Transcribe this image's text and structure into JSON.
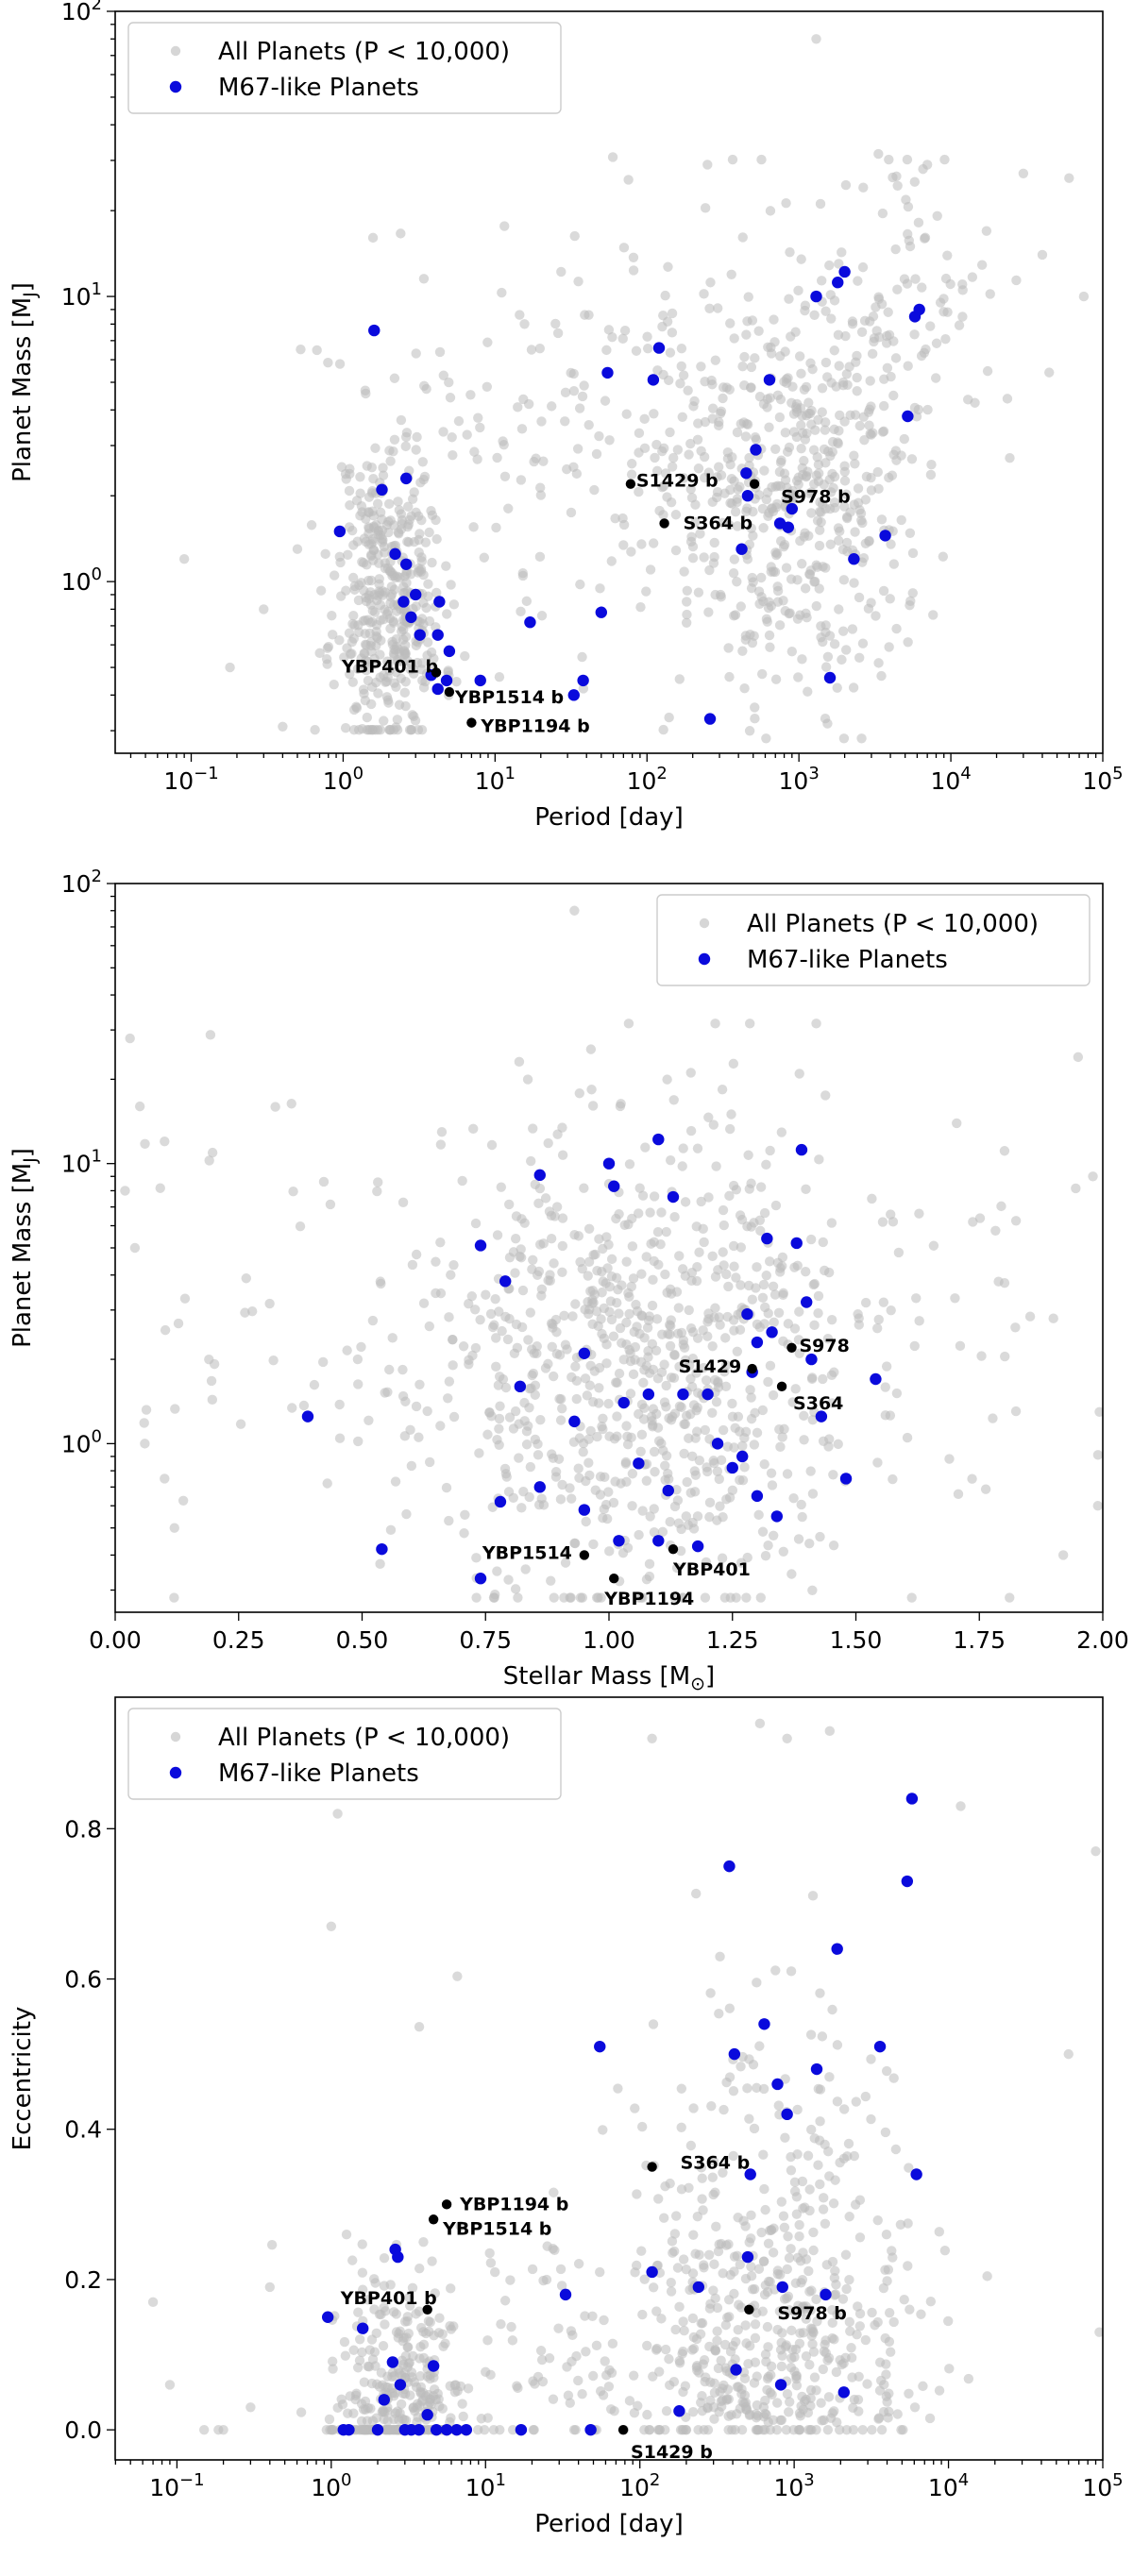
{
  "figure": {
    "background": "#ffffff"
  },
  "style": {
    "all_color": "#bbbbbb",
    "m67_color": "#0a0adc",
    "named_color": "#000000"
  },
  "chart_data": [
    {
      "id": "mass-period",
      "type": "scatter",
      "xscale": "log",
      "yscale": "log",
      "xlim": [
        0.0316,
        100000
      ],
      "ylim": [
        0.25,
        100
      ],
      "xlabel": "Period [day]",
      "ylabel": "Planet Mass [M",
      "ylabel_sub": "J",
      "ylabel_end": "]",
      "xticks": [
        {
          "v": 0.1,
          "base": "10",
          "exp": "−1"
        },
        {
          "v": 1,
          "base": "10",
          "exp": "0"
        },
        {
          "v": 10,
          "base": "10",
          "exp": "1"
        },
        {
          "v": 100,
          "base": "10",
          "exp": "2"
        },
        {
          "v": 1000,
          "base": "10",
          "exp": "3"
        },
        {
          "v": 10000,
          "base": "10",
          "exp": "4"
        },
        {
          "v": 100000,
          "base": "10",
          "exp": "5"
        }
      ],
      "yticks": [
        {
          "v": 1,
          "base": "10",
          "exp": "0"
        },
        {
          "v": 10,
          "base": "10",
          "exp": "1"
        },
        {
          "v": 100,
          "base": "10",
          "exp": "2"
        }
      ],
      "legend": {
        "position": "upper-left",
        "all": "All Planets (P < 10,000)",
        "m67": "M67-like Planets"
      },
      "m67_points": [
        [
          1.6,
          7.6
        ],
        [
          0.95,
          1.5
        ],
        [
          1.8,
          2.1
        ],
        [
          2.6,
          2.3
        ],
        [
          2.2,
          1.25
        ],
        [
          2.6,
          1.15
        ],
        [
          2.5,
          0.85
        ],
        [
          3,
          0.9
        ],
        [
          2.8,
          0.75
        ],
        [
          3.2,
          0.65
        ],
        [
          4.2,
          0.65
        ],
        [
          4.3,
          0.85
        ],
        [
          5,
          0.57
        ],
        [
          3.8,
          0.47
        ],
        [
          4.2,
          0.42
        ],
        [
          4.8,
          0.45
        ],
        [
          8,
          0.45
        ],
        [
          17,
          0.72
        ],
        [
          33,
          0.4
        ],
        [
          38,
          0.45
        ],
        [
          50,
          0.78
        ],
        [
          55,
          5.4
        ],
        [
          110,
          5.1
        ],
        [
          120,
          6.6
        ],
        [
          260,
          0.33
        ],
        [
          420,
          1.3
        ],
        [
          450,
          2.4
        ],
        [
          460,
          2.0
        ],
        [
          520,
          2.9
        ],
        [
          640,
          5.1
        ],
        [
          750,
          1.6
        ],
        [
          850,
          1.55
        ],
        [
          900,
          1.8
        ],
        [
          1300,
          10
        ],
        [
          1600,
          0.46
        ],
        [
          1800,
          11.2
        ],
        [
          2000,
          12.2
        ],
        [
          2300,
          1.2
        ],
        [
          3700,
          1.45
        ],
        [
          5200,
          3.8
        ],
        [
          5800,
          8.5
        ],
        [
          6200,
          9
        ]
      ],
      "named": [
        {
          "label": "S1429 b",
          "x": 78,
          "y": 2.2,
          "dx": 6,
          "dy": -3
        },
        {
          "label": "S364 b",
          "x": 130,
          "y": 1.6,
          "dx": 20,
          "dy": 0
        },
        {
          "label": "S978 b",
          "x": 510,
          "y": 2.2,
          "dx": 28,
          "dy": 14
        },
        {
          "label": "YBP401 b",
          "x": 4.1,
          "y": 0.48,
          "dx": -100,
          "dy": -6
        },
        {
          "label": "YBP1514 b",
          "x": 5.0,
          "y": 0.41,
          "dx": 6,
          "dy": 6
        },
        {
          "label": "YBP1194 b",
          "x": 7.0,
          "y": 0.32,
          "dx": 10,
          "dy": 4
        }
      ],
      "background_cloud": {
        "seed": 11,
        "clusters": [
          {
            "n": 420,
            "lx": [
              0.3,
              0.18
            ],
            "ly": [
              -0.05,
              0.28
            ],
            "clipY": [
              -0.52,
              1.55
            ]
          },
          {
            "n": 520,
            "lx": [
              2.95,
              0.45
            ],
            "ly": [
              0.35,
              0.38
            ],
            "clipY": [
              -0.55,
              1.48
            ]
          },
          {
            "n": 180,
            "lx": [
              1.7,
              0.85
            ],
            "ly": [
              0.55,
              0.4
            ],
            "clipY": [
              -0.52,
              1.5
            ]
          },
          {
            "n": 90,
            "lx": [
              3.9,
              0.3
            ],
            "ly": [
              1.05,
              0.25
            ],
            "clipY": [
              0.2,
              1.48
            ]
          }
        ],
        "extra": [
          [
            0.09,
            1.2
          ],
          [
            0.18,
            0.5
          ],
          [
            0.4,
            0.31
          ],
          [
            0.3,
            0.8
          ],
          [
            0.5,
            1.3
          ],
          [
            1300,
            80
          ],
          [
            250,
            29
          ],
          [
            7000,
            29
          ],
          [
            30000,
            27
          ],
          [
            60000,
            26
          ],
          [
            40000,
            14
          ],
          [
            75000,
            10
          ]
        ]
      }
    },
    {
      "id": "mass-stellar",
      "type": "scatter",
      "xscale": "linear",
      "yscale": "log",
      "xlim": [
        0,
        2
      ],
      "ylim": [
        0.25,
        100
      ],
      "xlabel": "Stellar Mass [M",
      "xlabel_sub": "⊙",
      "xlabel_end": "]",
      "ylabel": "Planet Mass [M",
      "ylabel_sub": "J",
      "ylabel_end": "]",
      "xticks": [
        {
          "v": 0,
          "label": "0.00"
        },
        {
          "v": 0.25,
          "label": "0.25"
        },
        {
          "v": 0.5,
          "label": "0.50"
        },
        {
          "v": 0.75,
          "label": "0.75"
        },
        {
          "v": 1.0,
          "label": "1.00"
        },
        {
          "v": 1.25,
          "label": "1.25"
        },
        {
          "v": 1.5,
          "label": "1.50"
        },
        {
          "v": 1.75,
          "label": "1.75"
        },
        {
          "v": 2.0,
          "label": "2.00"
        }
      ],
      "yticks": [
        {
          "v": 1,
          "base": "10",
          "exp": "0"
        },
        {
          "v": 10,
          "base": "10",
          "exp": "1"
        },
        {
          "v": 100,
          "base": "10",
          "exp": "2"
        }
      ],
      "legend": {
        "position": "upper-right",
        "all": "All Planets (P < 10,000)",
        "m67": "M67-like Planets"
      },
      "m67_points": [
        [
          0.39,
          1.25
        ],
        [
          0.54,
          0.42
        ],
        [
          0.74,
          5.1
        ],
        [
          0.74,
          0.33
        ],
        [
          0.79,
          3.8
        ],
        [
          0.82,
          1.6
        ],
        [
          0.78,
          0.62
        ],
        [
          0.86,
          9.1
        ],
        [
          0.86,
          0.7
        ],
        [
          0.93,
          1.2
        ],
        [
          0.95,
          2.1
        ],
        [
          0.95,
          0.58
        ],
        [
          1.0,
          10
        ],
        [
          1.01,
          8.3
        ],
        [
          1.02,
          0.45
        ],
        [
          1.03,
          1.4
        ],
        [
          1.06,
          0.85
        ],
        [
          1.08,
          1.5
        ],
        [
          1.1,
          0.45
        ],
        [
          1.1,
          12.2
        ],
        [
          1.12,
          0.68
        ],
        [
          1.13,
          7.6
        ],
        [
          1.15,
          1.5
        ],
        [
          1.18,
          0.43
        ],
        [
          1.2,
          1.5
        ],
        [
          1.22,
          1.0
        ],
        [
          1.25,
          0.82
        ],
        [
          1.27,
          0.9
        ],
        [
          1.28,
          2.9
        ],
        [
          1.29,
          1.8
        ],
        [
          1.3,
          2.3
        ],
        [
          1.3,
          0.65
        ],
        [
          1.32,
          5.4
        ],
        [
          1.33,
          2.5
        ],
        [
          1.34,
          0.55
        ],
        [
          1.38,
          5.2
        ],
        [
          1.39,
          11.2
        ],
        [
          1.4,
          3.2
        ],
        [
          1.41,
          2.0
        ],
        [
          1.43,
          1.25
        ],
        [
          1.48,
          0.75
        ],
        [
          1.54,
          1.7
        ]
      ],
      "named": [
        {
          "label": "YBP1514",
          "x": 0.95,
          "y": 0.4,
          "dx": -108,
          "dy": -2
        },
        {
          "label": "YBP1194",
          "x": 1.01,
          "y": 0.33,
          "dx": -10,
          "dy": 22
        },
        {
          "label": "YBP401",
          "x": 1.13,
          "y": 0.42,
          "dx": 0,
          "dy": 22
        },
        {
          "label": "S1429",
          "x": 1.29,
          "y": 1.85,
          "dx": -78,
          "dy": -2
        },
        {
          "label": "S364",
          "x": 1.35,
          "y": 1.6,
          "dx": 12,
          "dy": 18
        },
        {
          "label": "S978",
          "x": 1.37,
          "y": 2.2,
          "dx": 8,
          "dy": -2
        }
      ],
      "background_cloud": {
        "seed": 23,
        "clusters": [
          {
            "n": 700,
            "lx": [
              1.05,
              0.22
            ],
            "ly": [
              0.25,
              0.42
            ],
            "clipY": [
              -0.55,
              1.5
            ],
            "linear": true
          },
          {
            "n": 220,
            "lx": [
              1.0,
              0.55
            ],
            "ly": [
              0.35,
              0.5
            ],
            "clipY": [
              -0.55,
              1.5
            ],
            "linear": true
          }
        ],
        "extra": [
          [
            0.93,
            80
          ],
          [
            0.03,
            28
          ],
          [
            0.05,
            16
          ],
          [
            0.1,
            12
          ],
          [
            0.02,
            8
          ],
          [
            0.04,
            5
          ],
          [
            0.06,
            1
          ],
          [
            0.1,
            0.75
          ],
          [
            0.12,
            0.5
          ],
          [
            1.95,
            24
          ],
          [
            1.98,
            9
          ],
          [
            1.9,
            2.8
          ],
          [
            1.99,
            0.6
          ],
          [
            1.92,
            0.4
          ]
        ]
      }
    },
    {
      "id": "ecc-period",
      "type": "scatter",
      "xscale": "log",
      "yscale": "linear",
      "xlim": [
        0.0398,
        100000
      ],
      "ylim": [
        -0.04,
        0.975
      ],
      "xlabel": "Period [day]",
      "ylabel": "Eccentricity",
      "xticks": [
        {
          "v": 0.1,
          "base": "10",
          "exp": "−1"
        },
        {
          "v": 1,
          "base": "10",
          "exp": "0"
        },
        {
          "v": 10,
          "base": "10",
          "exp": "1"
        },
        {
          "v": 100,
          "base": "10",
          "exp": "2"
        },
        {
          "v": 1000,
          "base": "10",
          "exp": "3"
        },
        {
          "v": 10000,
          "base": "10",
          "exp": "4"
        },
        {
          "v": 100000,
          "base": "10",
          "exp": "5"
        }
      ],
      "yticks": [
        {
          "v": 0,
          "label": "0.0"
        },
        {
          "v": 0.2,
          "label": "0.2"
        },
        {
          "v": 0.4,
          "label": "0.4"
        },
        {
          "v": 0.6,
          "label": "0.6"
        },
        {
          "v": 0.8,
          "label": "0.8"
        }
      ],
      "legend": {
        "position": "upper-left",
        "all": "All Planets (P < 10,000)",
        "m67": "M67-like Planets"
      },
      "m67_points": [
        [
          0.95,
          0.15
        ],
        [
          1.6,
          0.135
        ],
        [
          1.2,
          0
        ],
        [
          1.3,
          0
        ],
        [
          2.0,
          0
        ],
        [
          2.6,
          0.24
        ],
        [
          2.7,
          0.23
        ],
        [
          2.5,
          0.09
        ],
        [
          2.2,
          0.04
        ],
        [
          2.8,
          0.06
        ],
        [
          3.0,
          0
        ],
        [
          3.3,
          0
        ],
        [
          3.7,
          0
        ],
        [
          4.2,
          0.02
        ],
        [
          4.6,
          0.085
        ],
        [
          4.8,
          0
        ],
        [
          5.6,
          0
        ],
        [
          6.5,
          0
        ],
        [
          7.5,
          0
        ],
        [
          17,
          0
        ],
        [
          33,
          0.18
        ],
        [
          48,
          0
        ],
        [
          55,
          0.51
        ],
        [
          120,
          0.21
        ],
        [
          180,
          0.025
        ],
        [
          240,
          0.19
        ],
        [
          380,
          0.75
        ],
        [
          410,
          0.5
        ],
        [
          420,
          0.08
        ],
        [
          520,
          0.34
        ],
        [
          500,
          0.23
        ],
        [
          640,
          0.54
        ],
        [
          780,
          0.46
        ],
        [
          900,
          0.42
        ],
        [
          840,
          0.19
        ],
        [
          820,
          0.06
        ],
        [
          1400,
          0.48
        ],
        [
          1600,
          0.18
        ],
        [
          1900,
          0.64
        ],
        [
          2100,
          0.05
        ],
        [
          3600,
          0.51
        ],
        [
          5400,
          0.73
        ],
        [
          5800,
          0.84
        ],
        [
          6200,
          0.34
        ]
      ],
      "named": [
        {
          "label": "YBP401 b",
          "x": 4.2,
          "y": 0.16,
          "dx": -92,
          "dy": -12
        },
        {
          "label": "YBP1514 b",
          "x": 4.6,
          "y": 0.28,
          "dx": 10,
          "dy": 10
        },
        {
          "label": "YBP1194 b",
          "x": 5.6,
          "y": 0.3,
          "dx": 14,
          "dy": 0
        },
        {
          "label": "S364 b",
          "x": 120,
          "y": 0.35,
          "dx": 30,
          "dy": -4
        },
        {
          "label": "S978 b",
          "x": 510,
          "y": 0.16,
          "dx": 30,
          "dy": 4
        },
        {
          "label": "S1429 b",
          "x": 78,
          "y": 0.0,
          "dx": 8,
          "dy": 24
        }
      ],
      "background_cloud": {
        "seed": 37,
        "clusters": [
          {
            "n": 330,
            "lx": [
              0.45,
              0.22
            ],
            "zeroFrac": 0.35,
            "ecc": 0.09
          },
          {
            "n": 520,
            "lx": [
              2.9,
              0.45
            ],
            "zeroFrac": 0.06,
            "ecc": 0.24
          },
          {
            "n": 160,
            "lx": [
              1.8,
              0.85
            ],
            "zeroFrac": 0.25,
            "ecc": 0.22
          }
        ],
        "extra": [
          [
            0.07,
            0.17
          ],
          [
            0.09,
            0.06
          ],
          [
            0.15,
            0
          ],
          [
            0.2,
            0
          ],
          [
            0.4,
            0.19
          ],
          [
            0.3,
            0.03
          ],
          [
            1.0,
            0.67
          ],
          [
            1.1,
            0.82
          ],
          [
            120,
            0.92
          ],
          [
            600,
            0.94
          ],
          [
            900,
            0.92
          ],
          [
            1700,
            0.93
          ],
          [
            12000,
            0.83
          ],
          [
            60000,
            0.5
          ],
          [
            90000,
            0.77
          ],
          [
            95000,
            0.13
          ]
        ]
      }
    }
  ]
}
